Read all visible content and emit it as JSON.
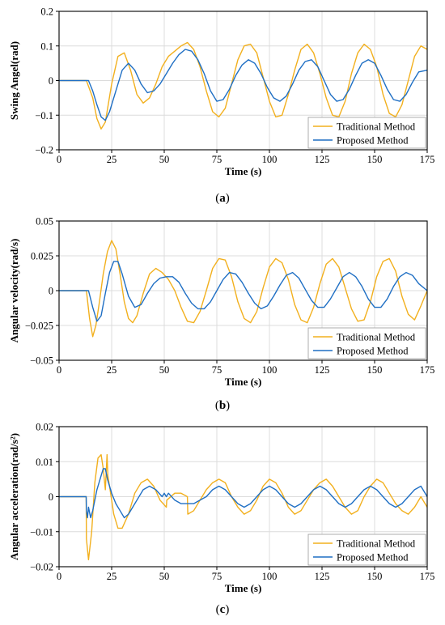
{
  "colors": {
    "traditional": "#F2B01E",
    "proposed": "#1F6FC4",
    "grid": "#dcdcdc",
    "axis": "#000000"
  },
  "chart_data": [
    {
      "type": "line",
      "caption": "a",
      "xlabel": "Time (s)",
      "ylabel": "Swing Angel(rad)",
      "xlim": [
        0,
        175
      ],
      "ylim": [
        -0.2,
        0.2
      ],
      "xticks": [
        0,
        25,
        50,
        75,
        100,
        125,
        150,
        175
      ],
      "yticks": [
        -0.2,
        -0.1,
        0,
        0.1,
        0.2
      ],
      "ytick_labels": [
        "−0.2",
        "−0.1",
        "0",
        "0.1",
        "0.2"
      ],
      "grid": true,
      "legend": "bottom-right",
      "series": [
        {
          "name": "Traditional Method",
          "color": "#F2B01E",
          "x": [
            0,
            13,
            16,
            18,
            20,
            22,
            25,
            28,
            31,
            34,
            37,
            40,
            43,
            46,
            49,
            52,
            55,
            58,
            61,
            64,
            67,
            70,
            73,
            76,
            79,
            82,
            85,
            88,
            91,
            94,
            97,
            100,
            103,
            106,
            109,
            112,
            115,
            118,
            121,
            124,
            127,
            130,
            133,
            136,
            139,
            142,
            145,
            148,
            151,
            154,
            157,
            160,
            163,
            166,
            169,
            172,
            175
          ],
          "y": [
            0,
            0,
            -0.05,
            -0.11,
            -0.14,
            -0.12,
            -0.01,
            0.07,
            0.08,
            0.03,
            -0.04,
            -0.065,
            -0.05,
            -0.01,
            0.04,
            0.07,
            0.085,
            0.1,
            0.11,
            0.09,
            0.04,
            -0.03,
            -0.09,
            -0.105,
            -0.08,
            -0.01,
            0.06,
            0.1,
            0.105,
            0.08,
            0.01,
            -0.06,
            -0.105,
            -0.1,
            -0.04,
            0.03,
            0.09,
            0.105,
            0.08,
            0.02,
            -0.05,
            -0.1,
            -0.105,
            -0.06,
            0.02,
            0.08,
            0.105,
            0.09,
            0.04,
            -0.04,
            -0.095,
            -0.105,
            -0.07,
            0.0,
            0.07,
            0.1,
            0.09
          ]
        },
        {
          "name": "Proposed Method",
          "color": "#1F6FC4",
          "x": [
            0,
            14,
            16,
            18,
            20,
            22,
            24,
            27,
            30,
            33,
            36,
            39,
            42,
            45,
            48,
            51,
            54,
            57,
            60,
            63,
            66,
            69,
            72,
            75,
            78,
            81,
            84,
            87,
            90,
            93,
            96,
            99,
            102,
            105,
            108,
            111,
            114,
            117,
            120,
            123,
            126,
            129,
            132,
            135,
            138,
            141,
            144,
            147,
            150,
            153,
            156,
            159,
            162,
            165,
            168,
            171,
            175
          ],
          "y": [
            0,
            0,
            -0.03,
            -0.07,
            -0.105,
            -0.115,
            -0.09,
            -0.03,
            0.03,
            0.05,
            0.03,
            -0.01,
            -0.035,
            -0.03,
            -0.01,
            0.02,
            0.05,
            0.075,
            0.09,
            0.085,
            0.06,
            0.02,
            -0.03,
            -0.06,
            -0.055,
            -0.025,
            0.015,
            0.045,
            0.06,
            0.05,
            0.02,
            -0.02,
            -0.05,
            -0.06,
            -0.045,
            -0.01,
            0.03,
            0.055,
            0.06,
            0.04,
            0.0,
            -0.04,
            -0.06,
            -0.055,
            -0.025,
            0.015,
            0.05,
            0.06,
            0.05,
            0.015,
            -0.025,
            -0.055,
            -0.06,
            -0.04,
            -0.005,
            0.025,
            0.03
          ]
        }
      ]
    },
    {
      "type": "line",
      "caption": "b",
      "xlabel": "Time (s)",
      "ylabel": "Angular velocity(rad/s)",
      "xlim": [
        0,
        175
      ],
      "ylim": [
        -0.05,
        0.05
      ],
      "xticks": [
        0,
        25,
        50,
        75,
        100,
        125,
        150,
        175
      ],
      "yticks": [
        -0.05,
        -0.025,
        0,
        0.025,
        0.05
      ],
      "ytick_labels": [
        "−0.05",
        "−0.025",
        "0",
        "0.025",
        "0.05"
      ],
      "grid": true,
      "legend": "bottom-right",
      "series": [
        {
          "name": "Traditional Method",
          "color": "#F2B01E",
          "x": [
            0,
            13,
            14.5,
            16,
            17.5,
            19,
            21,
            23,
            25,
            27,
            29,
            31,
            33,
            35,
            37,
            40,
            43,
            46,
            49,
            52,
            55,
            58,
            61,
            64,
            67,
            70,
            73,
            76,
            79,
            82,
            85,
            88,
            91,
            94,
            97,
            100,
            103,
            106,
            109,
            112,
            115,
            118,
            121,
            124,
            127,
            130,
            133,
            136,
            139,
            142,
            145,
            148,
            151,
            154,
            157,
            160,
            163,
            166,
            169,
            172,
            175
          ],
          "y": [
            0,
            0,
            -0.02,
            -0.033,
            -0.025,
            -0.01,
            0.012,
            0.028,
            0.036,
            0.03,
            0.012,
            -0.008,
            -0.02,
            -0.023,
            -0.018,
            -0.002,
            0.012,
            0.016,
            0.013,
            0.008,
            0.0,
            -0.012,
            -0.022,
            -0.023,
            -0.015,
            0.0,
            0.016,
            0.023,
            0.022,
            0.01,
            -0.008,
            -0.02,
            -0.023,
            -0.015,
            0.002,
            0.017,
            0.023,
            0.02,
            0.008,
            -0.01,
            -0.021,
            -0.023,
            -0.012,
            0.005,
            0.019,
            0.023,
            0.017,
            0.002,
            -0.013,
            -0.022,
            -0.021,
            -0.008,
            0.01,
            0.021,
            0.023,
            0.014,
            -0.004,
            -0.017,
            -0.021,
            -0.011,
            0.0
          ]
        },
        {
          "name": "Proposed Method",
          "color": "#1F6FC4",
          "x": [
            0,
            14,
            16,
            18,
            20,
            22,
            24,
            26,
            28,
            30,
            33,
            36,
            39,
            42,
            45,
            48,
            51,
            54,
            57,
            60,
            63,
            66,
            69,
            72,
            75,
            78,
            81,
            84,
            87,
            90,
            93,
            96,
            99,
            102,
            105,
            108,
            111,
            114,
            117,
            120,
            123,
            126,
            129,
            132,
            135,
            138,
            141,
            144,
            147,
            150,
            153,
            156,
            159,
            162,
            165,
            168,
            171,
            175
          ],
          "y": [
            0,
            0,
            -0.012,
            -0.022,
            -0.018,
            -0.002,
            0.013,
            0.021,
            0.021,
            0.012,
            -0.004,
            -0.012,
            -0.01,
            -0.002,
            0.005,
            0.009,
            0.01,
            0.01,
            0.006,
            -0.002,
            -0.009,
            -0.013,
            -0.013,
            -0.008,
            0.0,
            0.008,
            0.013,
            0.012,
            0.006,
            -0.002,
            -0.009,
            -0.013,
            -0.011,
            -0.004,
            0.004,
            0.011,
            0.013,
            0.009,
            0.001,
            -0.007,
            -0.012,
            -0.012,
            -0.006,
            0.002,
            0.01,
            0.013,
            0.01,
            0.003,
            -0.006,
            -0.012,
            -0.012,
            -0.006,
            0.003,
            0.01,
            0.013,
            0.011,
            0.005,
            0.0
          ]
        }
      ]
    },
    {
      "type": "line",
      "caption": "c",
      "xlabel": "Time (s)",
      "ylabel": "Angular acceleration(rad/s²)",
      "xlim": [
        0,
        175
      ],
      "ylim": [
        -0.02,
        0.02
      ],
      "xticks": [
        0,
        25,
        50,
        75,
        100,
        125,
        150,
        175
      ],
      "yticks": [
        -0.02,
        -0.01,
        0,
        0.01,
        0.02
      ],
      "ytick_labels": [
        "−0.02",
        "−0.01",
        "0",
        "0.01",
        "0.02"
      ],
      "grid": true,
      "legend": "bottom-right",
      "series": [
        {
          "name": "Traditional Method",
          "color": "#F2B01E",
          "x": [
            0,
            12.9,
            13,
            14,
            15.5,
            17,
            18.5,
            20,
            21,
            22,
            22.8,
            23.2,
            24,
            26,
            28,
            30,
            33,
            36,
            39,
            42,
            45,
            48,
            51,
            51.2,
            55,
            58,
            61,
            61.2,
            64,
            67,
            70,
            73,
            76,
            79,
            82,
            85,
            88,
            91,
            94,
            97,
            100,
            103,
            106,
            109,
            112,
            115,
            118,
            121,
            124,
            127,
            130,
            133,
            136,
            139,
            142,
            145,
            148,
            151,
            154,
            157,
            160,
            163,
            166,
            169,
            172,
            175
          ],
          "y": [
            0,
            0,
            -0.012,
            -0.018,
            -0.01,
            0.004,
            0.011,
            0.012,
            0.008,
            0.002,
            0.012,
            0.006,
            0.003,
            -0.005,
            -0.009,
            -0.009,
            -0.005,
            0.001,
            0.004,
            0.005,
            0.003,
            -0.001,
            -0.003,
            -0.001,
            0.001,
            0.001,
            0.0,
            -0.005,
            -0.004,
            -0.001,
            0.002,
            0.004,
            0.005,
            0.004,
            0.0,
            -0.003,
            -0.005,
            -0.004,
            -0.001,
            0.003,
            0.005,
            0.004,
            0.001,
            -0.003,
            -0.005,
            -0.004,
            -0.001,
            0.002,
            0.004,
            0.005,
            0.003,
            0.0,
            -0.003,
            -0.005,
            -0.004,
            0.0,
            0.003,
            0.005,
            0.004,
            0.001,
            -0.002,
            -0.004,
            -0.005,
            -0.003,
            0.0,
            -0.003
          ]
        },
        {
          "name": "Proposed Method",
          "color": "#1F6FC4",
          "x": [
            0,
            12.9,
            13,
            13.5,
            14,
            15,
            16,
            17,
            18,
            19,
            20,
            21,
            22,
            23,
            24,
            25,
            27,
            29,
            31,
            33,
            35,
            37,
            40,
            43,
            46,
            49,
            50,
            51,
            52,
            55,
            58,
            61,
            64,
            67,
            70,
            73,
            76,
            79,
            82,
            85,
            88,
            91,
            94,
            97,
            100,
            103,
            106,
            109,
            112,
            115,
            118,
            121,
            124,
            127,
            130,
            133,
            136,
            139,
            142,
            145,
            148,
            151,
            154,
            157,
            160,
            163,
            166,
            169,
            172,
            175
          ],
          "y": [
            0,
            0,
            -0.004,
            -0.006,
            -0.003,
            -0.006,
            -0.004,
            -0.001,
            0.002,
            0.004,
            0.006,
            0.008,
            0.008,
            0.005,
            0.003,
            0.001,
            -0.002,
            -0.004,
            -0.006,
            -0.005,
            -0.003,
            -0.001,
            0.002,
            0.003,
            0.002,
            0.0,
            0.001,
            0.0,
            0.001,
            -0.001,
            -0.002,
            -0.002,
            -0.002,
            -0.001,
            0.0,
            0.002,
            0.003,
            0.002,
            0.0,
            -0.002,
            -0.003,
            -0.002,
            0.0,
            0.002,
            0.003,
            0.002,
            0.0,
            -0.002,
            -0.003,
            -0.002,
            0.0,
            0.002,
            0.003,
            0.002,
            0.0,
            -0.002,
            -0.003,
            -0.002,
            0.0,
            0.002,
            0.003,
            0.002,
            0.0,
            -0.002,
            -0.003,
            -0.002,
            0.0,
            0.002,
            0.003,
            0.0
          ]
        }
      ]
    }
  ]
}
